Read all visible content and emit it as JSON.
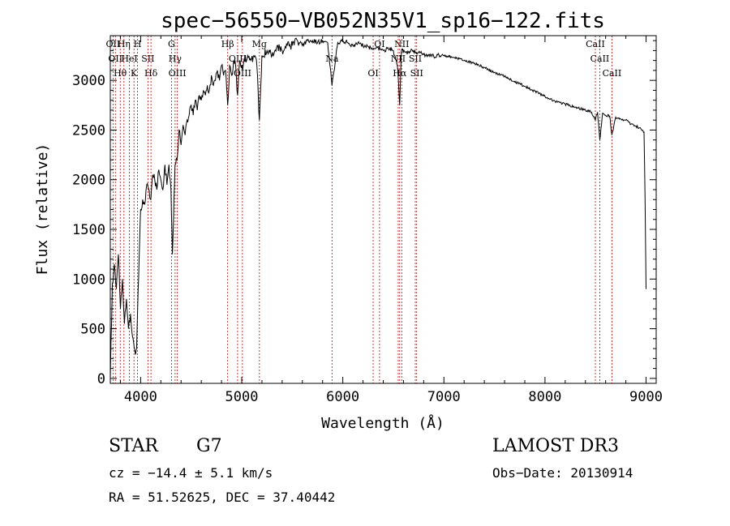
{
  "chart_data": {
    "type": "line",
    "title": "spec−56550−VB052N35V1_sp16−122.fits",
    "xlabel": "Wavelength (Å)",
    "ylabel": "Flux (relative)",
    "xlim": [
      3700,
      9100
    ],
    "ylim": [
      -50,
      3450
    ],
    "xticks": [
      4000,
      5000,
      6000,
      7000,
      8000,
      9000
    ],
    "yticks": [
      0,
      500,
      1000,
      1500,
      2000,
      2500,
      3000
    ],
    "series": [
      {
        "name": "flux",
        "x": [
          3700,
          3720,
          3740,
          3760,
          3780,
          3800,
          3820,
          3840,
          3860,
          3880,
          3900,
          3920,
          3935,
          3950,
          3960,
          3970,
          3985,
          4000,
          4020,
          4040,
          4060,
          4080,
          4101,
          4120,
          4140,
          4160,
          4180,
          4200,
          4220,
          4240,
          4260,
          4280,
          4300,
          4315,
          4325,
          4340,
          4360,
          4380,
          4400,
          4420,
          4440,
          4460,
          4480,
          4500,
          4520,
          4540,
          4560,
          4580,
          4600,
          4620,
          4640,
          4660,
          4680,
          4700,
          4720,
          4740,
          4760,
          4780,
          4800,
          4820,
          4840,
          4861,
          4880,
          4900,
          4920,
          4940,
          4959,
          4980,
          5007,
          5030,
          5060,
          5090,
          5120,
          5150,
          5175,
          5200,
          5250,
          5300,
          5350,
          5400,
          5450,
          5500,
          5550,
          5600,
          5650,
          5700,
          5750,
          5800,
          5850,
          5893,
          5950,
          6000,
          6050,
          6100,
          6150,
          6200,
          6250,
          6300,
          6350,
          6400,
          6450,
          6500,
          6540,
          6563,
          6580,
          6620,
          6660,
          6700,
          6750,
          6800,
          6850,
          6900,
          6950,
          7000,
          7100,
          7200,
          7300,
          7400,
          7500,
          7600,
          7700,
          7800,
          7900,
          8000,
          8100,
          8200,
          8300,
          8400,
          8450,
          8498,
          8520,
          8542,
          8570,
          8600,
          8640,
          8662,
          8700,
          8750,
          8800,
          8850,
          8900,
          8950,
          8980,
          8990,
          9000
        ],
        "y": [
          0,
          950,
          1150,
          900,
          1250,
          700,
          1000,
          550,
          800,
          500,
          650,
          420,
          320,
          240,
          300,
          700,
          1200,
          1700,
          1800,
          1750,
          1950,
          1900,
          1800,
          2050,
          2000,
          1900,
          2100,
          2000,
          1900,
          2150,
          1950,
          2150,
          1900,
          1250,
          1600,
          2150,
          2200,
          2500,
          2350,
          2550,
          2450,
          2600,
          2650,
          2750,
          2650,
          2800,
          2700,
          2850,
          2800,
          2900,
          2850,
          2950,
          2900,
          3050,
          2950,
          3000,
          3100,
          3000,
          3150,
          3050,
          3100,
          2750,
          3150,
          3050,
          3200,
          3150,
          2850,
          3200,
          3100,
          3200,
          3250,
          3200,
          3250,
          3150,
          2600,
          3250,
          3300,
          3250,
          3350,
          3300,
          3350,
          3350,
          3400,
          3350,
          3400,
          3400,
          3380,
          3400,
          3380,
          2950,
          3380,
          3400,
          3380,
          3350,
          3380,
          3350,
          3340,
          3310,
          3330,
          3300,
          3320,
          3300,
          3150,
          2750,
          3300,
          3280,
          3290,
          3300,
          3280,
          3260,
          3260,
          3240,
          3260,
          3250,
          3230,
          3200,
          3170,
          3130,
          3080,
          3040,
          2990,
          2940,
          2890,
          2840,
          2790,
          2760,
          2730,
          2700,
          2690,
          2600,
          2680,
          2400,
          2670,
          2650,
          2640,
          2450,
          2630,
          2610,
          2600,
          2560,
          2540,
          2510,
          2480,
          1800,
          900
        ]
      }
    ],
    "line_markers": [
      {
        "wavelength": 3727,
        "labels": [
          "OII"
        ]
      },
      {
        "wavelength": 3750,
        "labels": [
          "OII"
        ]
      },
      {
        "wavelength": 3798,
        "labels": [
          "Hθ"
        ]
      },
      {
        "wavelength": 3835,
        "labels": [
          "Hη"
        ]
      },
      {
        "wavelength": 3889,
        "labels": [
          "HeI"
        ]
      },
      {
        "wavelength": 3934,
        "labels": [
          "K"
        ]
      },
      {
        "wavelength": 3969,
        "labels": [
          "H"
        ]
      },
      {
        "wavelength": 4072,
        "labels": [
          "SII"
        ]
      },
      {
        "wavelength": 4102,
        "labels": [
          "Hδ"
        ]
      },
      {
        "wavelength": 4305,
        "labels": [
          "G"
        ]
      },
      {
        "wavelength": 4341,
        "labels": [
          "Hγ"
        ]
      },
      {
        "wavelength": 4363,
        "labels": [
          "OIII"
        ]
      },
      {
        "wavelength": 4861,
        "labels": [
          "Hβ"
        ]
      },
      {
        "wavelength": 4959,
        "labels": [
          "OIII"
        ]
      },
      {
        "wavelength": 5007,
        "labels": [
          "OIII"
        ]
      },
      {
        "wavelength": 5175,
        "labels": [
          "Mg"
        ]
      },
      {
        "wavelength": 5893,
        "labels": [
          "Na"
        ]
      },
      {
        "wavelength": 6300,
        "labels": [
          "OI"
        ]
      },
      {
        "wavelength": 6363,
        "labels": [
          "OI"
        ]
      },
      {
        "wavelength": 6548,
        "labels": [
          "NII"
        ]
      },
      {
        "wavelength": 6563,
        "labels": [
          "Hα"
        ]
      },
      {
        "wavelength": 6583,
        "labels": [
          "NII"
        ]
      },
      {
        "wavelength": 6717,
        "labels": [
          "SII"
        ]
      },
      {
        "wavelength": 6731,
        "labels": [
          "SII"
        ]
      },
      {
        "wavelength": 8498,
        "labels": [
          "CaII"
        ]
      },
      {
        "wavelength": 8542,
        "labels": [
          "CaII"
        ]
      },
      {
        "wavelength": 8662,
        "labels": [
          "CaII"
        ]
      }
    ]
  },
  "info": {
    "object_class": "STAR",
    "subclass": "G7",
    "cz": "cz = −14.4 ± 5.1 km/s",
    "coords": "RA =  51.52625, DEC =  37.40442",
    "survey": "LAMOST DR3",
    "obs_date": "Obs−Date: 20130914"
  },
  "colors": {
    "spectrum": "#000000",
    "marker_line": "#cc0000",
    "axes": "#000000"
  }
}
